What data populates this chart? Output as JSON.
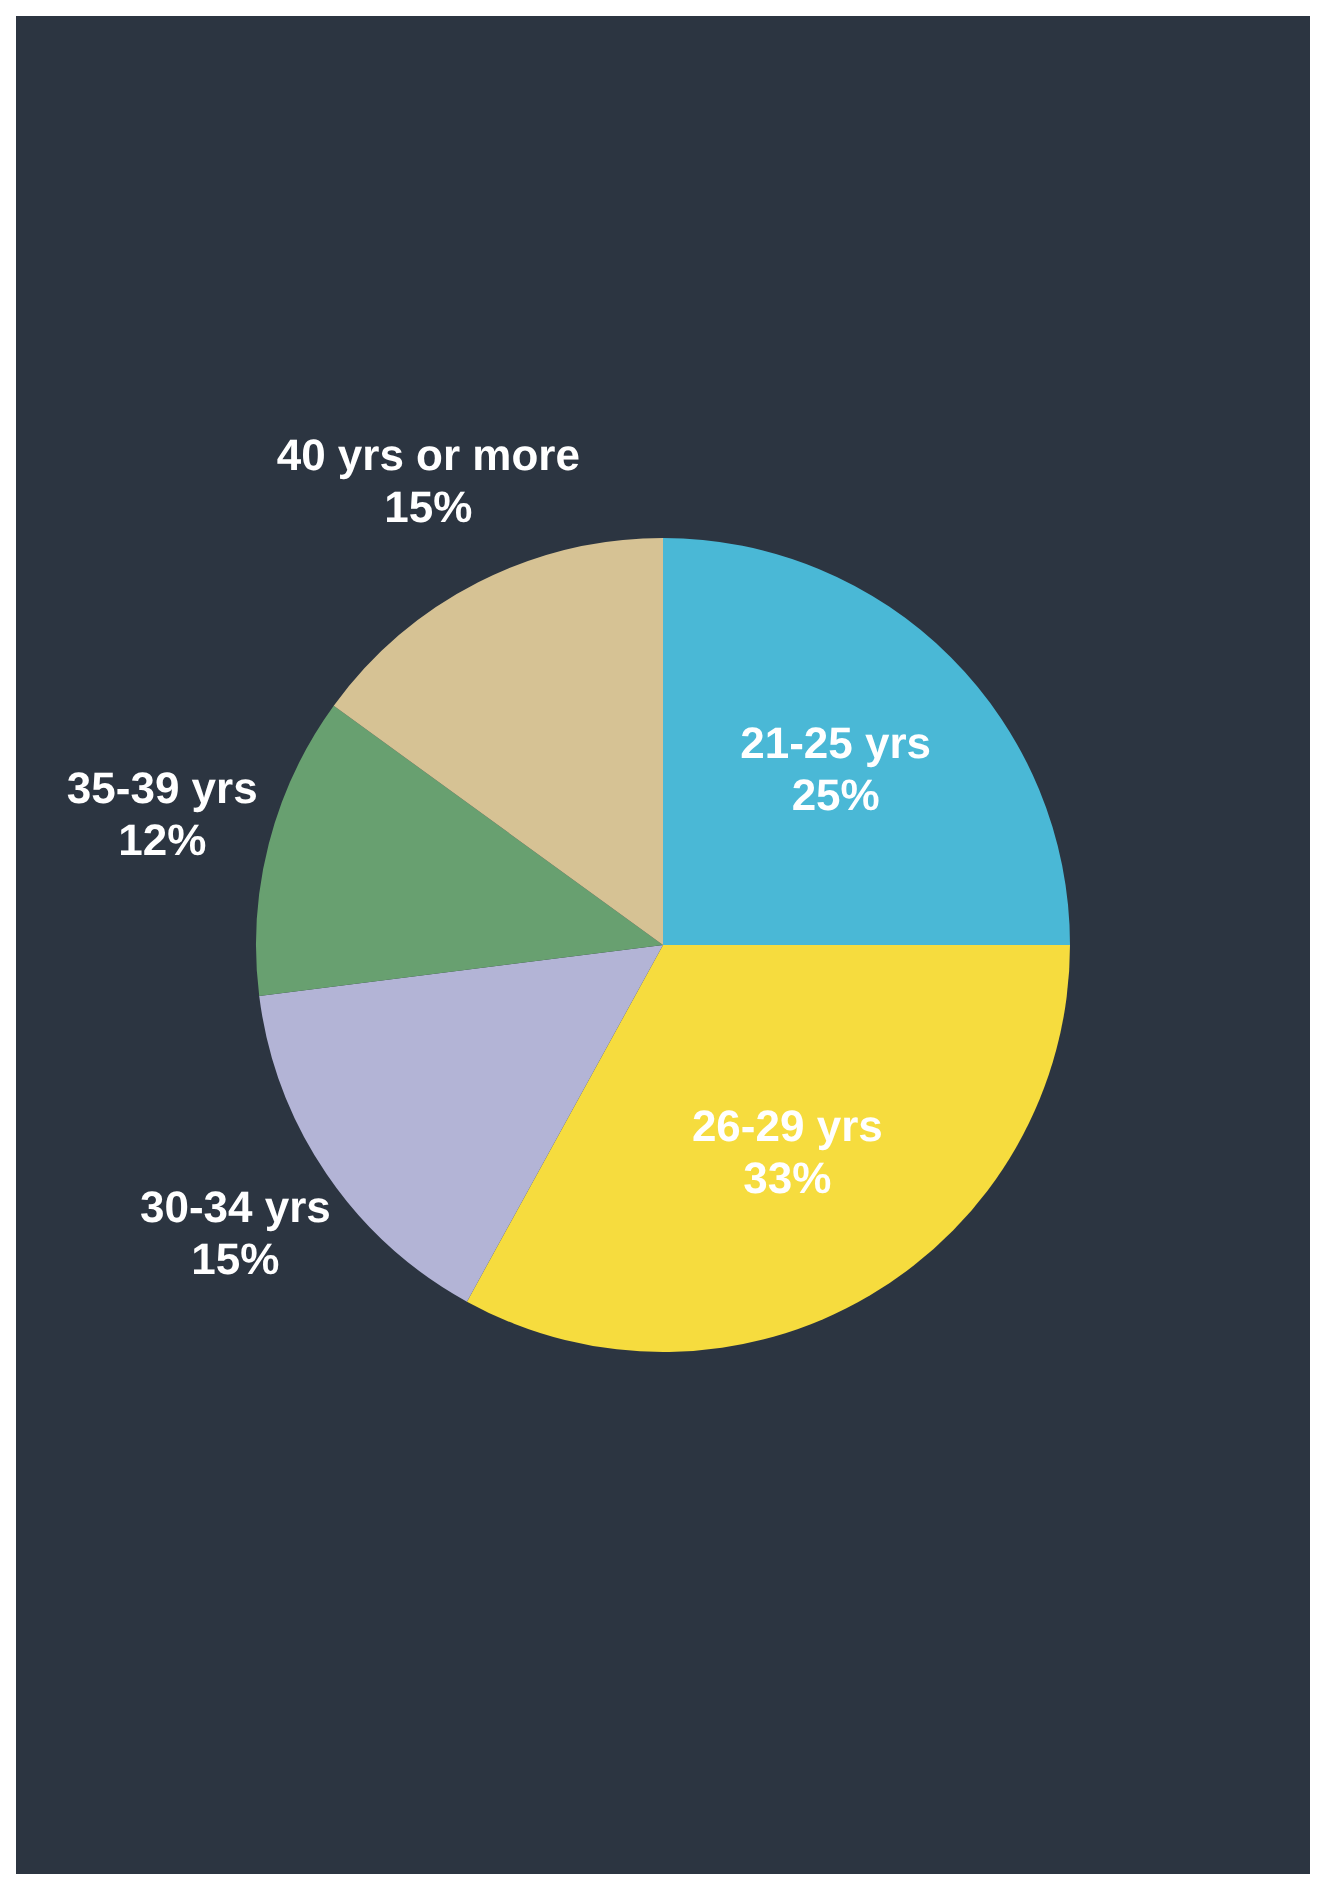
{
  "chart_data": {
    "type": "pie",
    "categories": [
      "21-25 yrs",
      "26-29 yrs",
      "30-34 yrs",
      "35-39 yrs",
      "40 yrs or more"
    ],
    "values": [
      25,
      33,
      15,
      12,
      15
    ],
    "value_labels": [
      "25%",
      "33%",
      "15%",
      "12%",
      "15%"
    ],
    "colors": [
      "#4ab8d6",
      "#f6dc3e",
      "#b3b4d6",
      "#68a070",
      "#d6c294"
    ]
  }
}
